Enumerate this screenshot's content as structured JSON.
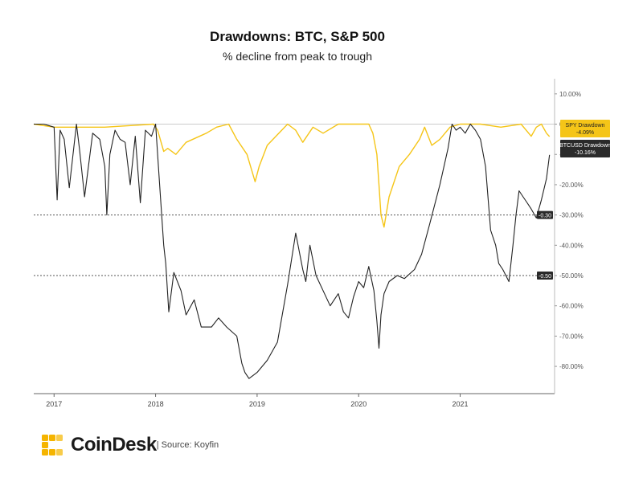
{
  "header": {
    "title": "Drawdowns: BTC, S&P 500",
    "subtitle": "% decline from peak to trough"
  },
  "footer": {
    "brand": "CoinDesk",
    "source": "| Source: Koyfin"
  },
  "colors": {
    "btc": "#222222",
    "spy": "#f5c518",
    "brand_gold": "#f5b400"
  },
  "chart_data": {
    "type": "line",
    "title": "Drawdowns: BTC, S&P 500",
    "subtitle": "% decline from peak to trough",
    "y_ticks": [
      "10.00%",
      "0.00%",
      "-10.00%",
      "-20.00%",
      "-30.00%",
      "-40.00%",
      "-50.00%",
      "-60.00%",
      "-70.00%",
      "-80.00%"
    ],
    "y_tick_values": [
      10,
      0,
      -10,
      -20,
      -30,
      -40,
      -50,
      -60,
      -70,
      -80
    ],
    "x_ticks": [
      "2017",
      "2018",
      "2019",
      "2020",
      "2021"
    ],
    "xlim": [
      2016.8,
      2021.93
    ],
    "ylim": [
      -89,
      15
    ],
    "reference_lines": [
      {
        "value": -30,
        "label": "-0.30"
      },
      {
        "value": -50,
        "label": "-0.50"
      }
    ],
    "series": [
      {
        "name": "SPY Drawdown",
        "last_label": "-4.09%",
        "color": "#f5c518",
        "x": [
          2016.8,
          2017.0,
          2017.5,
          2017.98,
          2018.02,
          2018.08,
          2018.12,
          2018.2,
          2018.3,
          2018.5,
          2018.6,
          2018.72,
          2018.8,
          2018.9,
          2018.98,
          2019.02,
          2019.1,
          2019.3,
          2019.38,
          2019.45,
          2019.55,
          2019.65,
          2019.8,
          2019.95,
          2020.1,
          2020.14,
          2020.18,
          2020.2,
          2020.22,
          2020.25,
          2020.3,
          2020.4,
          2020.5,
          2020.6,
          2020.65,
          2020.72,
          2020.8,
          2020.9,
          2021.0,
          2021.2,
          2021.4,
          2021.6,
          2021.7,
          2021.75,
          2021.8,
          2021.85,
          2021.88
        ],
        "y": [
          0,
          -1,
          -1,
          0,
          -2,
          -9,
          -8,
          -10,
          -6,
          -3,
          -1,
          0,
          -5,
          -10,
          -19,
          -14,
          -7,
          0,
          -2,
          -6,
          -1,
          -3,
          0,
          0,
          0,
          -3,
          -10,
          -20,
          -30,
          -34,
          -24,
          -14,
          -10,
          -5,
          -1,
          -7,
          -5,
          -1,
          0,
          0,
          -1,
          0,
          -4,
          -1,
          0,
          -3,
          -4.09
        ]
      },
      {
        "name": "BTCUSD Drawdown",
        "last_label": "-10.16%",
        "color": "#222222",
        "x": [
          2016.8,
          2016.9,
          2017.0,
          2017.03,
          2017.06,
          2017.1,
          2017.15,
          2017.22,
          2017.25,
          2017.3,
          2017.38,
          2017.45,
          2017.5,
          2017.52,
          2017.55,
          2017.6,
          2017.65,
          2017.7,
          2017.75,
          2017.8,
          2017.85,
          2017.9,
          2017.96,
          2018.0,
          2018.04,
          2018.08,
          2018.1,
          2018.13,
          2018.18,
          2018.25,
          2018.3,
          2018.38,
          2018.45,
          2018.55,
          2018.62,
          2018.7,
          2018.8,
          2018.85,
          2018.88,
          2018.92,
          2018.96,
          2019.0,
          2019.1,
          2019.2,
          2019.3,
          2019.38,
          2019.45,
          2019.48,
          2019.52,
          2019.58,
          2019.65,
          2019.72,
          2019.8,
          2019.85,
          2019.9,
          2019.95,
          2020.0,
          2020.05,
          2020.1,
          2020.15,
          2020.18,
          2020.2,
          2020.22,
          2020.25,
          2020.3,
          2020.38,
          2020.45,
          2020.55,
          2020.62,
          2020.7,
          2020.8,
          2020.88,
          2020.92,
          2020.96,
          2021.0,
          2021.05,
          2021.1,
          2021.15,
          2021.2,
          2021.25,
          2021.3,
          2021.35,
          2021.38,
          2021.42,
          2021.48,
          2021.52,
          2021.55,
          2021.58,
          2021.62,
          2021.66,
          2021.7,
          2021.75,
          2021.8,
          2021.85,
          2021.88
        ],
        "y": [
          0,
          0,
          -1,
          -25,
          -2,
          -5,
          -21,
          0,
          -8,
          -24,
          -3,
          -5,
          -14,
          -30,
          -10,
          -2,
          -5,
          -6,
          -20,
          -4,
          -26,
          -2,
          -4,
          0,
          -20,
          -40,
          -46,
          -62,
          -49,
          -55,
          -63,
          -58,
          -67,
          -67,
          -64,
          -67,
          -70,
          -79,
          -82,
          -84,
          -83,
          -82,
          -78,
          -72,
          -53,
          -36,
          -48,
          -52,
          -40,
          -50,
          -55,
          -60,
          -56,
          -62,
          -64,
          -57,
          -52,
          -54,
          -47,
          -55,
          -65,
          -74,
          -63,
          -56,
          -52,
          -50,
          -51,
          -48,
          -43,
          -33,
          -20,
          -8,
          0,
          -2,
          -1,
          -3,
          0,
          -2,
          -5,
          -14,
          -35,
          -40,
          -46,
          -48,
          -52,
          -40,
          -30,
          -22,
          -24,
          -26,
          -28,
          -31,
          -25,
          -18,
          -10.16
        ]
      }
    ],
    "grid": false,
    "legend": "right"
  }
}
